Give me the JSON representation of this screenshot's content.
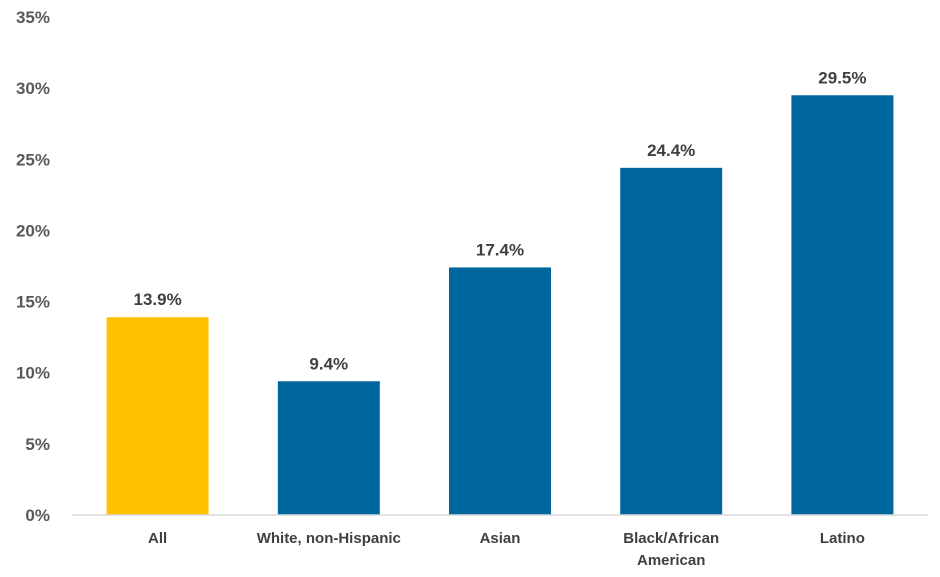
{
  "chart_data": {
    "type": "bar",
    "title": "",
    "xlabel": "",
    "ylabel": "",
    "categories": [
      "All",
      "White, non-Hispanic",
      "Asian",
      "Black/African American",
      "Latino"
    ],
    "category_lines": [
      [
        "All"
      ],
      [
        "White, non-Hispanic"
      ],
      [
        "Asian"
      ],
      [
        "Black/African",
        "American"
      ],
      [
        "Latino"
      ]
    ],
    "values": [
      13.9,
      9.4,
      17.4,
      24.4,
      29.5
    ],
    "data_labels": [
      "13.9%",
      "9.4%",
      "17.4%",
      "24.4%",
      "29.5%"
    ],
    "ylim": [
      0,
      35
    ],
    "yticks": [
      0,
      5,
      10,
      15,
      20,
      25,
      30,
      35
    ],
    "ytick_labels": [
      "0%",
      "5%",
      "10%",
      "15%",
      "20%",
      "25%",
      "30%",
      "35%"
    ],
    "bar_colors": [
      "#FFC000",
      "#00679E",
      "#00679E",
      "#00679E",
      "#00679E"
    ],
    "grid": false,
    "legend": "none"
  }
}
